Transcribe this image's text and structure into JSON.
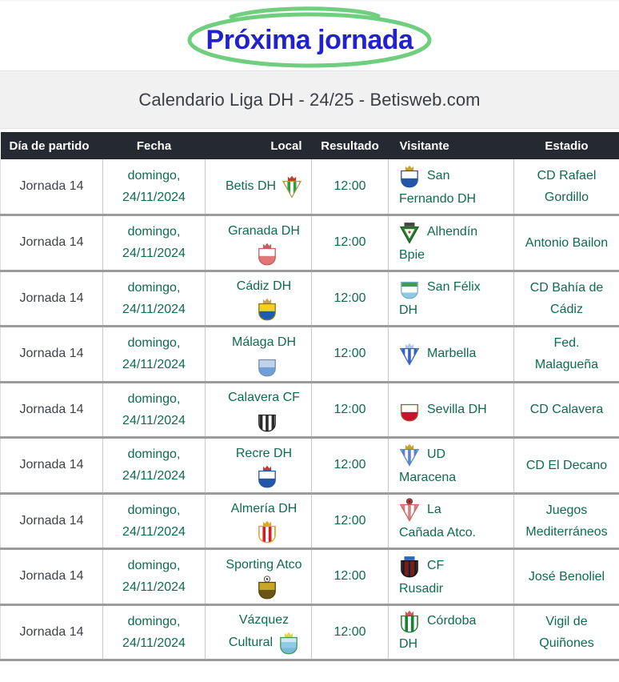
{
  "banner": {
    "title": "Próxima jornada"
  },
  "header_band": {
    "title": "Calendario Liga DH - 24/25 - Betisweb.com"
  },
  "colors": {
    "banner_title_blue": "#2222cc",
    "circle_green": "#6fcf7f",
    "band_bg": "#f1f1f2",
    "header_bg": "#252a32",
    "row_border": "#9c9c9c",
    "cell_border": "#c9c9c9",
    "accent_green_text": "#0e6b4f",
    "text_dark": "#3f4347"
  },
  "table": {
    "headers": [
      "Día de partido",
      "Fecha",
      "Local",
      "Resultado",
      "Visitante",
      "Estadio"
    ],
    "rows": [
      {
        "matchday": "Jornada 14",
        "date_lines": [
          "domingo,",
          "24/11/2024"
        ],
        "result": "12:00",
        "home": {
          "name": "Betis DH",
          "lines": [
            "Betis DH"
          ],
          "crest_line": 0,
          "crest": {
            "slug": "betis-dh",
            "shape": "tri",
            "fill": "stripes",
            "colors": [
              "#2f9e41",
              "#ffffff"
            ],
            "border": "#b09a4a",
            "topper": "crown",
            "topper_color": "#c0392b"
          }
        },
        "away": {
          "name": "San Fernando DH",
          "lines": [
            "San",
            "Fernando DH"
          ],
          "crest": {
            "slug": "san-fernando-dh",
            "shape": "shield",
            "fill": "halves",
            "colors": [
              "#ffffff",
              "#2456a8"
            ],
            "border": "#2456a8",
            "topper": "crown",
            "topper_color": "#c9a227"
          }
        },
        "stadium": "CD Rafael Gordillo",
        "stadium_lines": [
          "CD Rafael",
          "Gordillo"
        ]
      },
      {
        "matchday": "Jornada 14",
        "date_lines": [
          "domingo,",
          "24/11/2024"
        ],
        "result": "12:00",
        "home": {
          "name": "Granada DH",
          "lines": [
            "Granada DH",
            ""
          ],
          "crest_line": 1,
          "crest": {
            "slug": "granada-dh",
            "shape": "shield",
            "fill": "halves",
            "colors": [
              "#ffffff",
              "#e07878"
            ],
            "border": "#cc5b5b",
            "topper": "crown",
            "topper_color": "#cc5b5b"
          }
        },
        "away": {
          "name": "Alhendín Bpie",
          "lines": [
            "Alhendín",
            "Bpie"
          ],
          "crest": {
            "slug": "alhendin-bpie",
            "shape": "tri",
            "fill": "inset",
            "colors": [
              "#2e7d32",
              "#ffffff"
            ],
            "border": "#1b5e20",
            "topper": "bar",
            "topper_color": "#444444"
          }
        },
        "stadium": "Antonio Bailon",
        "stadium_lines": [
          "Antonio Bailon"
        ]
      },
      {
        "matchday": "Jornada 14",
        "date_lines": [
          "domingo,",
          "24/11/2024"
        ],
        "result": "12:00",
        "home": {
          "name": "Cádiz DH",
          "lines": [
            "Cádiz DH",
            ""
          ],
          "crest_line": 1,
          "crest": {
            "slug": "cadiz-dh",
            "shape": "shield",
            "fill": "halves",
            "colors": [
              "#f5d020",
              "#1a5bb5"
            ],
            "border": "#8a7a1a",
            "topper": "crown",
            "topper_color": "#c9a25e"
          }
        },
        "away": {
          "name": "San Félix DH",
          "lines": [
            "San Félix",
            "DH"
          ],
          "crest": {
            "slug": "san-felix-dh",
            "shape": "shield",
            "fill": "bands",
            "colors": [
              "#3d9b4f",
              "#ffffff",
              "#8ecae6"
            ],
            "border": "#7ab0c8",
            "topper": null,
            "topper_color": null
          }
        },
        "stadium": "CD Bahía de Cádiz",
        "stadium_lines": [
          "CD Bahía de",
          "Cádiz"
        ]
      },
      {
        "matchday": "Jornada 14",
        "date_lines": [
          "domingo,",
          "24/11/2024"
        ],
        "result": "12:00",
        "home": {
          "name": "Málaga DH",
          "lines": [
            "Málaga DH",
            ""
          ],
          "crest_line": 1,
          "crest": {
            "slug": "malaga-dh",
            "shape": "shield",
            "fill": "halves",
            "colors": [
              "#bcd4ec",
              "#6f9fd8"
            ],
            "border": "#7b8ea6",
            "topper": null,
            "topper_color": null
          }
        },
        "away": {
          "name": "Marbella",
          "lines": [
            "Marbella"
          ],
          "crest": {
            "slug": "marbella",
            "shape": "tri",
            "fill": "stripes",
            "colors": [
              "#ffffff",
              "#3a62c4"
            ],
            "border": "#3a62c4",
            "topper": "crown",
            "topper_color": "#b8c8e8"
          }
        },
        "stadium": "Fed. Malagueña",
        "stadium_lines": [
          "Fed.",
          "Malagueña"
        ]
      },
      {
        "matchday": "Jornada 14",
        "date_lines": [
          "domingo,",
          "24/11/2024"
        ],
        "result": "12:00",
        "home": {
          "name": "Calavera CF",
          "lines": [
            "Calavera CF",
            ""
          ],
          "crest_line": 1,
          "crest": {
            "slug": "calavera-cf",
            "shape": "shield",
            "fill": "stripes",
            "colors": [
              "#ffffff",
              "#2a2a2a"
            ],
            "border": "#222222",
            "topper": null,
            "topper_color": null
          }
        },
        "away": {
          "name": "Sevilla DH",
          "lines": [
            "Sevilla DH"
          ],
          "crest": {
            "slug": "sevilla-dh",
            "shape": "shield",
            "fill": "halves",
            "colors": [
              "#ffffff",
              "#c8102e"
            ],
            "border": "#b5452c",
            "topper": null,
            "topper_color": null
          }
        },
        "stadium": "CD Calavera",
        "stadium_lines": [
          "CD Calavera"
        ]
      },
      {
        "matchday": "Jornada 14",
        "date_lines": [
          "domingo,",
          "24/11/2024"
        ],
        "result": "12:00",
        "home": {
          "name": "Recre DH",
          "lines": [
            "Recre DH",
            ""
          ],
          "crest_line": 1,
          "crest": {
            "slug": "recre-dh",
            "shape": "shield",
            "fill": "halves",
            "colors": [
              "#ffffff",
              "#2456a8"
            ],
            "border": "#2456a8",
            "topper": "crown",
            "topper_color": "#c0392b"
          }
        },
        "away": {
          "name": "UD Maracena",
          "lines": [
            "UD",
            "Maracena"
          ],
          "crest": {
            "slug": "ud-maracena",
            "shape": "tri",
            "fill": "stripes",
            "colors": [
              "#ffffff",
              "#5a86c8"
            ],
            "border": "#5a86c8",
            "topper": "crown",
            "topper_color": "#c9a227"
          }
        },
        "stadium": "CD El Decano",
        "stadium_lines": [
          "CD El Decano"
        ]
      },
      {
        "matchday": "Jornada 14",
        "date_lines": [
          "domingo,",
          "24/11/2024"
        ],
        "result": "12:00",
        "home": {
          "name": "Almería DH",
          "lines": [
            "Almería DH",
            ""
          ],
          "crest_line": 1,
          "crest": {
            "slug": "almeria-dh",
            "shape": "shield",
            "fill": "stripes",
            "colors": [
              "#d21f26",
              "#ffffff"
            ],
            "border": "#e0a81c",
            "topper": "crown",
            "topper_color": "#e0a81c"
          }
        },
        "away": {
          "name": "La Cañada Atco.",
          "lines": [
            "La",
            "Cañada Atco."
          ],
          "crest": {
            "slug": "la-canada-atco",
            "shape": "tri",
            "fill": "stripes",
            "colors": [
              "#ffffff",
              "#d98080"
            ],
            "border": "#c86060",
            "topper": "ball",
            "topper_color": "#c0392b"
          }
        },
        "stadium": "Juegos Mediterráneos",
        "stadium_lines": [
          "Juegos",
          "Mediterráneos"
        ]
      },
      {
        "matchday": "Jornada 14",
        "date_lines": [
          "domingo,",
          "24/11/2024"
        ],
        "result": "12:00",
        "home": {
          "name": "Sporting Atco",
          "lines": [
            "Sporting Atco",
            ""
          ],
          "crest_line": 1,
          "crest": {
            "slug": "sporting-atco",
            "shape": "shield",
            "fill": "halves",
            "colors": [
              "#c8a727",
              "#6b5513"
            ],
            "border": "#55430f",
            "topper": "ball",
            "topper_color": "#ffffff"
          }
        },
        "away": {
          "name": "CF Rusadir",
          "lines": [
            "CF",
            "Rusadir"
          ],
          "crest": {
            "slug": "cf-rusadir",
            "shape": "shield",
            "fill": "stripes",
            "colors": [
              "#8a1717",
              "#1f1f1f"
            ],
            "border": "#111111",
            "topper": "bar",
            "topper_color": "#2b63c9"
          }
        },
        "stadium": "José Benoliel",
        "stadium_lines": [
          "José Benoliel"
        ]
      },
      {
        "matchday": "Jornada 14",
        "date_lines": [
          "domingo,",
          "24/11/2024"
        ],
        "result": "12:00",
        "home": {
          "name": "Vázquez Cultural",
          "lines": [
            "Vázquez",
            "Cultural"
          ],
          "crest_line": 1,
          "crest": {
            "slug": "vazquez-cultural",
            "shape": "shield",
            "fill": "bands",
            "colors": [
              "#cfe8f5",
              "#8ecae6",
              "#79b8d8"
            ],
            "border": "#3a9d4e",
            "topper": "crown",
            "topper_color": "#e8d44d"
          }
        },
        "away": {
          "name": "Córdoba DH",
          "lines": [
            "Córdoba",
            "DH"
          ],
          "crest": {
            "slug": "cordoba-dh",
            "shape": "shield",
            "fill": "stripes",
            "colors": [
              "#1e7e34",
              "#ffffff"
            ],
            "border": "#1e7e34",
            "topper": "crown",
            "topper_color": "#cc5b5b"
          }
        },
        "stadium": "Vigil de Quiñones",
        "stadium_lines": [
          "Vigil de",
          "Quiñones"
        ]
      }
    ]
  }
}
